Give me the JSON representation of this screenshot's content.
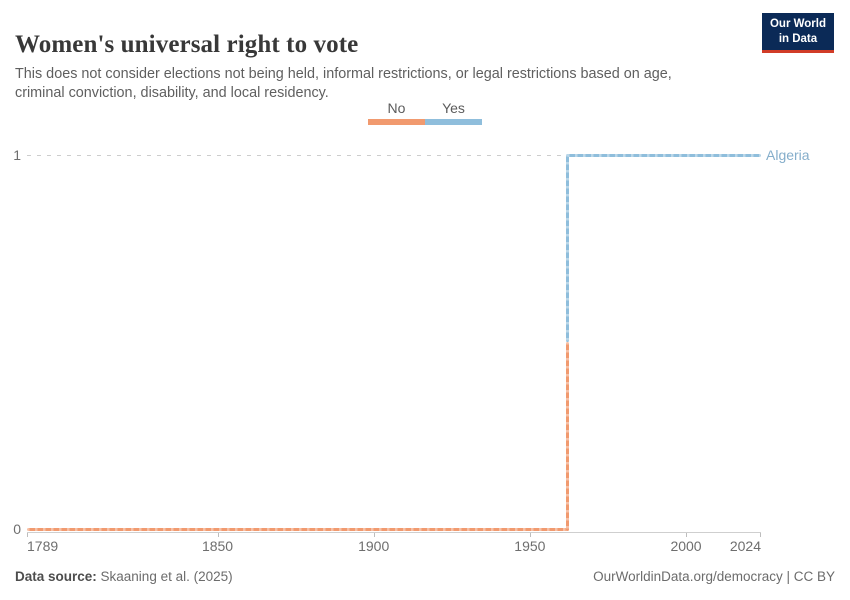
{
  "header": {
    "title": "Women's universal right to vote",
    "subtitle": "This does not consider elections not being held, informal restrictions, or legal restrictions based on age, criminal conviction, disability, and local residency.",
    "logo": {
      "line1": "Our World",
      "line2": "in Data",
      "bg_color": "#0b2a57",
      "accent_color": "#d13c27"
    }
  },
  "chart_data": {
    "type": "line",
    "subtype": "step",
    "title": "Women's universal right to vote",
    "entity_label": "Algeria",
    "entity_label_color": "#85aecb",
    "x_range": [
      1789,
      2024
    ],
    "x_ticks": [
      1789,
      1850,
      1900,
      1950,
      2000,
      2024
    ],
    "y_ticks": [
      0,
      1
    ],
    "ylim": [
      0,
      1
    ],
    "grid": "dashed-horizontal",
    "legend_position": "top-center",
    "legend": [
      {
        "label": "No",
        "color": "#f19a6f"
      },
      {
        "label": "Yes",
        "color": "#8fbedc"
      }
    ],
    "series": [
      {
        "name": "Algeria",
        "segments": [
          {
            "status": "No",
            "value": 0,
            "from": 1789,
            "to": 1962,
            "color": "#f19a6f"
          },
          {
            "status": "Yes",
            "value": 1,
            "from": 1962,
            "to": 2024,
            "color": "#8fbedc"
          }
        ]
      }
    ],
    "transition_year": 1962
  },
  "footer": {
    "source_label": "Data source:",
    "source_value": " Skaaning et al. (2025)",
    "credit": "OurWorldinData.org/democracy | CC BY"
  }
}
